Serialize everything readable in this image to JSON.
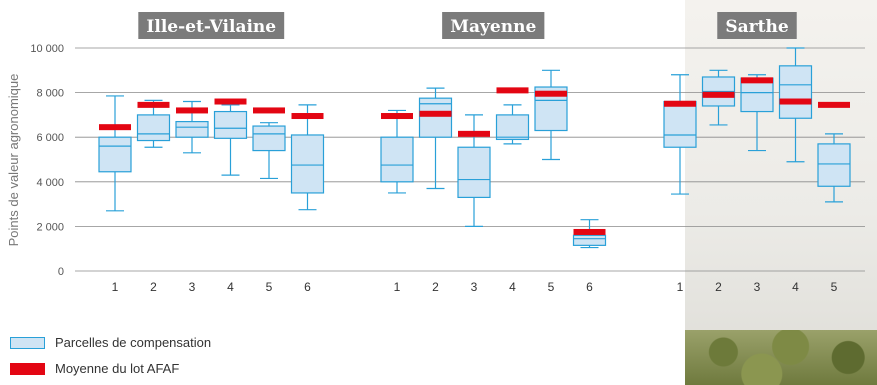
{
  "chart_data": {
    "type": "box",
    "ylabel": "Points de valeur agronomique",
    "ylim": [
      0,
      10000
    ],
    "yticks": [
      0,
      2000,
      4000,
      6000,
      8000,
      10000
    ],
    "ytick_labels": [
      "0",
      "2 000",
      "4 000",
      "6 000",
      "8 000",
      "10 000"
    ],
    "grid": true,
    "legend_placement": "bottom-left",
    "legend": [
      {
        "label": "Parcelles de compensation",
        "kind": "box"
      },
      {
        "label": "Moyenne du lot AFAF",
        "kind": "bar"
      }
    ],
    "colors": {
      "box_fill": "#cfe4f4",
      "box_edge": "#29a0d8",
      "mean_bar": "#e30613",
      "grid": "#8a8a8a",
      "group_label_bg": "#7b7b7b"
    },
    "groups": [
      {
        "name": "Ille-et-Vilaine",
        "boxes": [
          {
            "label": "1",
            "min": 2700,
            "q1": 4450,
            "median": 5600,
            "q3": 6000,
            "max": 7850,
            "mean_lot": 6450
          },
          {
            "label": "2",
            "min": 5550,
            "q1": 5850,
            "median": 6150,
            "q3": 7000,
            "max": 7650,
            "mean_lot": 7450
          },
          {
            "label": "3",
            "min": 5300,
            "q1": 6000,
            "median": 6450,
            "q3": 6700,
            "max": 7600,
            "mean_lot": 7200
          },
          {
            "label": "4",
            "min": 4300,
            "q1": 5950,
            "median": 6400,
            "q3": 7150,
            "max": 7450,
            "mean_lot": 7600
          },
          {
            "label": "5",
            "min": 4150,
            "q1": 5400,
            "median": 6150,
            "q3": 6500,
            "max": 6650,
            "mean_lot": 7200
          },
          {
            "label": "6",
            "min": 2750,
            "q1": 3500,
            "median": 4750,
            "q3": 6100,
            "max": 7450,
            "mean_lot": 6950
          }
        ]
      },
      {
        "name": "Mayenne",
        "boxes": [
          {
            "label": "1",
            "min": 3500,
            "q1": 4000,
            "median": 4750,
            "q3": 6000,
            "max": 7200,
            "mean_lot": 6950
          },
          {
            "label": "2",
            "min": 3700,
            "q1": 6000,
            "median": 7500,
            "q3": 7750,
            "max": 8200,
            "mean_lot": 7050
          },
          {
            "label": "3",
            "min": 2000,
            "q1": 3300,
            "median": 4100,
            "q3": 5550,
            "max": 7000,
            "mean_lot": 6150
          },
          {
            "label": "4",
            "min": 5700,
            "q1": 5900,
            "median": 6000,
            "q3": 7000,
            "max": 7450,
            "mean_lot": 8100
          },
          {
            "label": "5",
            "min": 5000,
            "q1": 6300,
            "median": 7650,
            "q3": 8250,
            "max": 9000,
            "mean_lot": 7950
          },
          {
            "label": "6",
            "min": 1050,
            "q1": 1150,
            "median": 1450,
            "q3": 1600,
            "max": 2300,
            "mean_lot": 1750
          }
        ]
      },
      {
        "name": "Sarthe",
        "boxes": [
          {
            "label": "1",
            "min": 3450,
            "q1": 5550,
            "median": 6100,
            "q3": 7600,
            "max": 8800,
            "mean_lot": 7500
          },
          {
            "label": "2",
            "min": 6550,
            "q1": 7400,
            "median": 8050,
            "q3": 8700,
            "max": 9000,
            "mean_lot": 7900
          },
          {
            "label": "3",
            "min": 5400,
            "q1": 7150,
            "median": 8000,
            "q3": 8650,
            "max": 8800,
            "mean_lot": 8550
          },
          {
            "label": "4",
            "min": 4900,
            "q1": 6850,
            "median": 8350,
            "q3": 9200,
            "max": 10000,
            "mean_lot": 7600
          },
          {
            "label": "5",
            "min": 3100,
            "q1": 3800,
            "median": 4800,
            "q3": 5700,
            "max": 6150,
            "mean_lot": 7450
          }
        ]
      }
    ]
  }
}
